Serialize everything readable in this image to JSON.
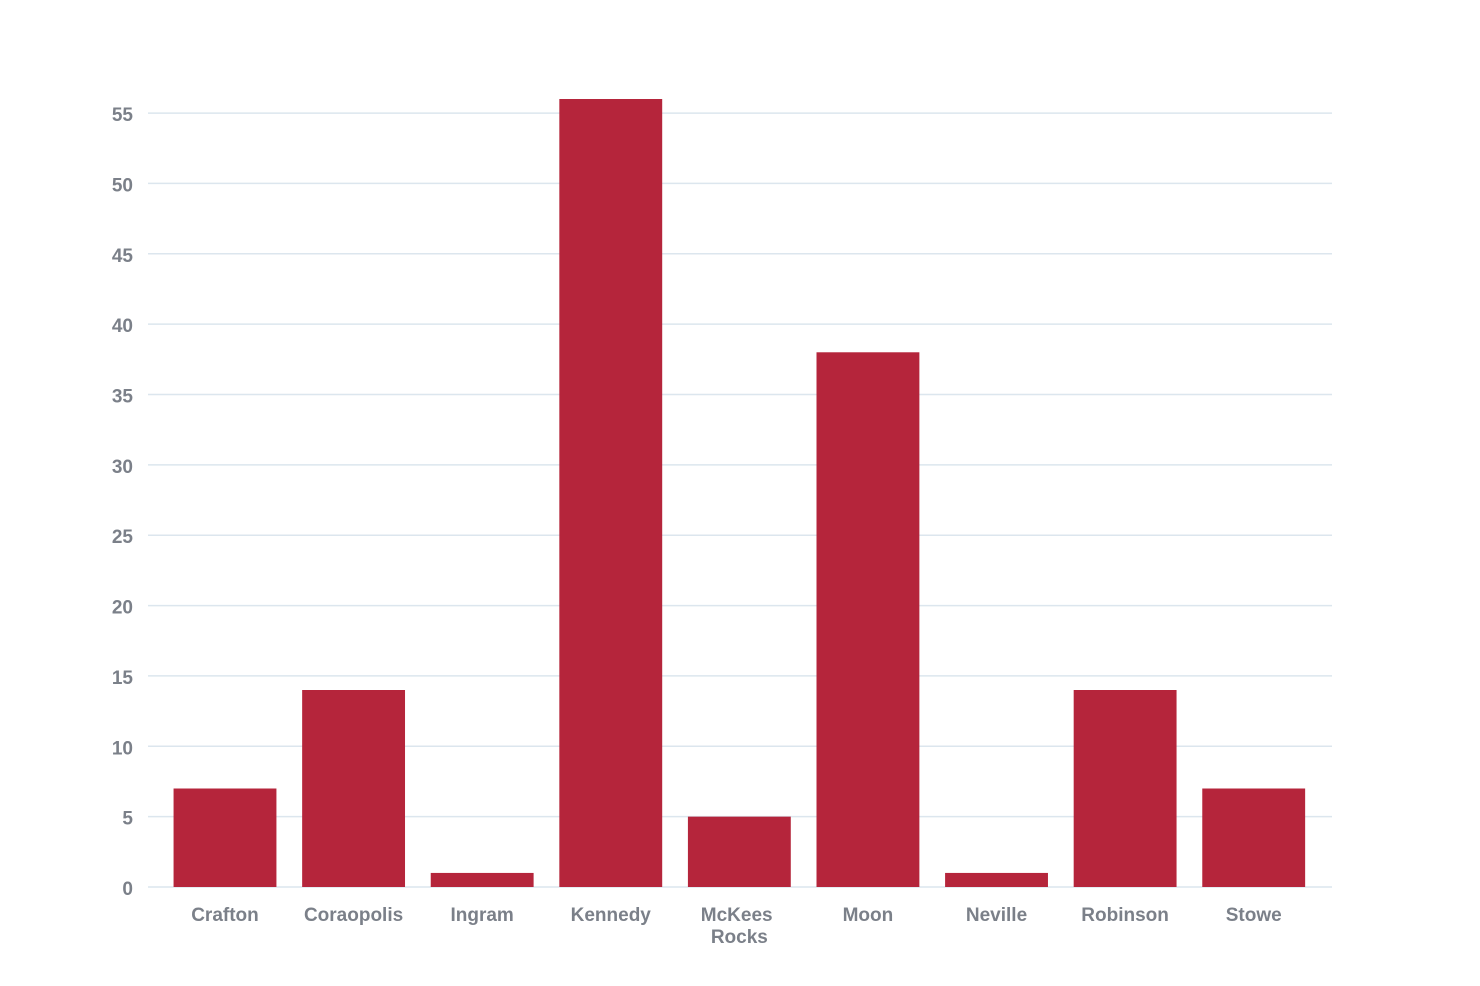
{
  "chart_data": {
    "type": "bar",
    "categories": [
      "Crafton",
      "Coraopolis",
      "Ingram",
      "Kennedy",
      "McKees Rocks",
      "Moon",
      "Neville",
      "Robinson",
      "Stowe"
    ],
    "values": [
      7,
      14,
      1,
      56,
      5,
      38,
      1,
      14,
      7
    ],
    "color": "#b5253b",
    "ylim": [
      0,
      56
    ],
    "yticks": [
      0,
      5,
      10,
      15,
      20,
      25,
      30,
      35,
      40,
      45,
      50,
      55
    ],
    "grid": true
  }
}
